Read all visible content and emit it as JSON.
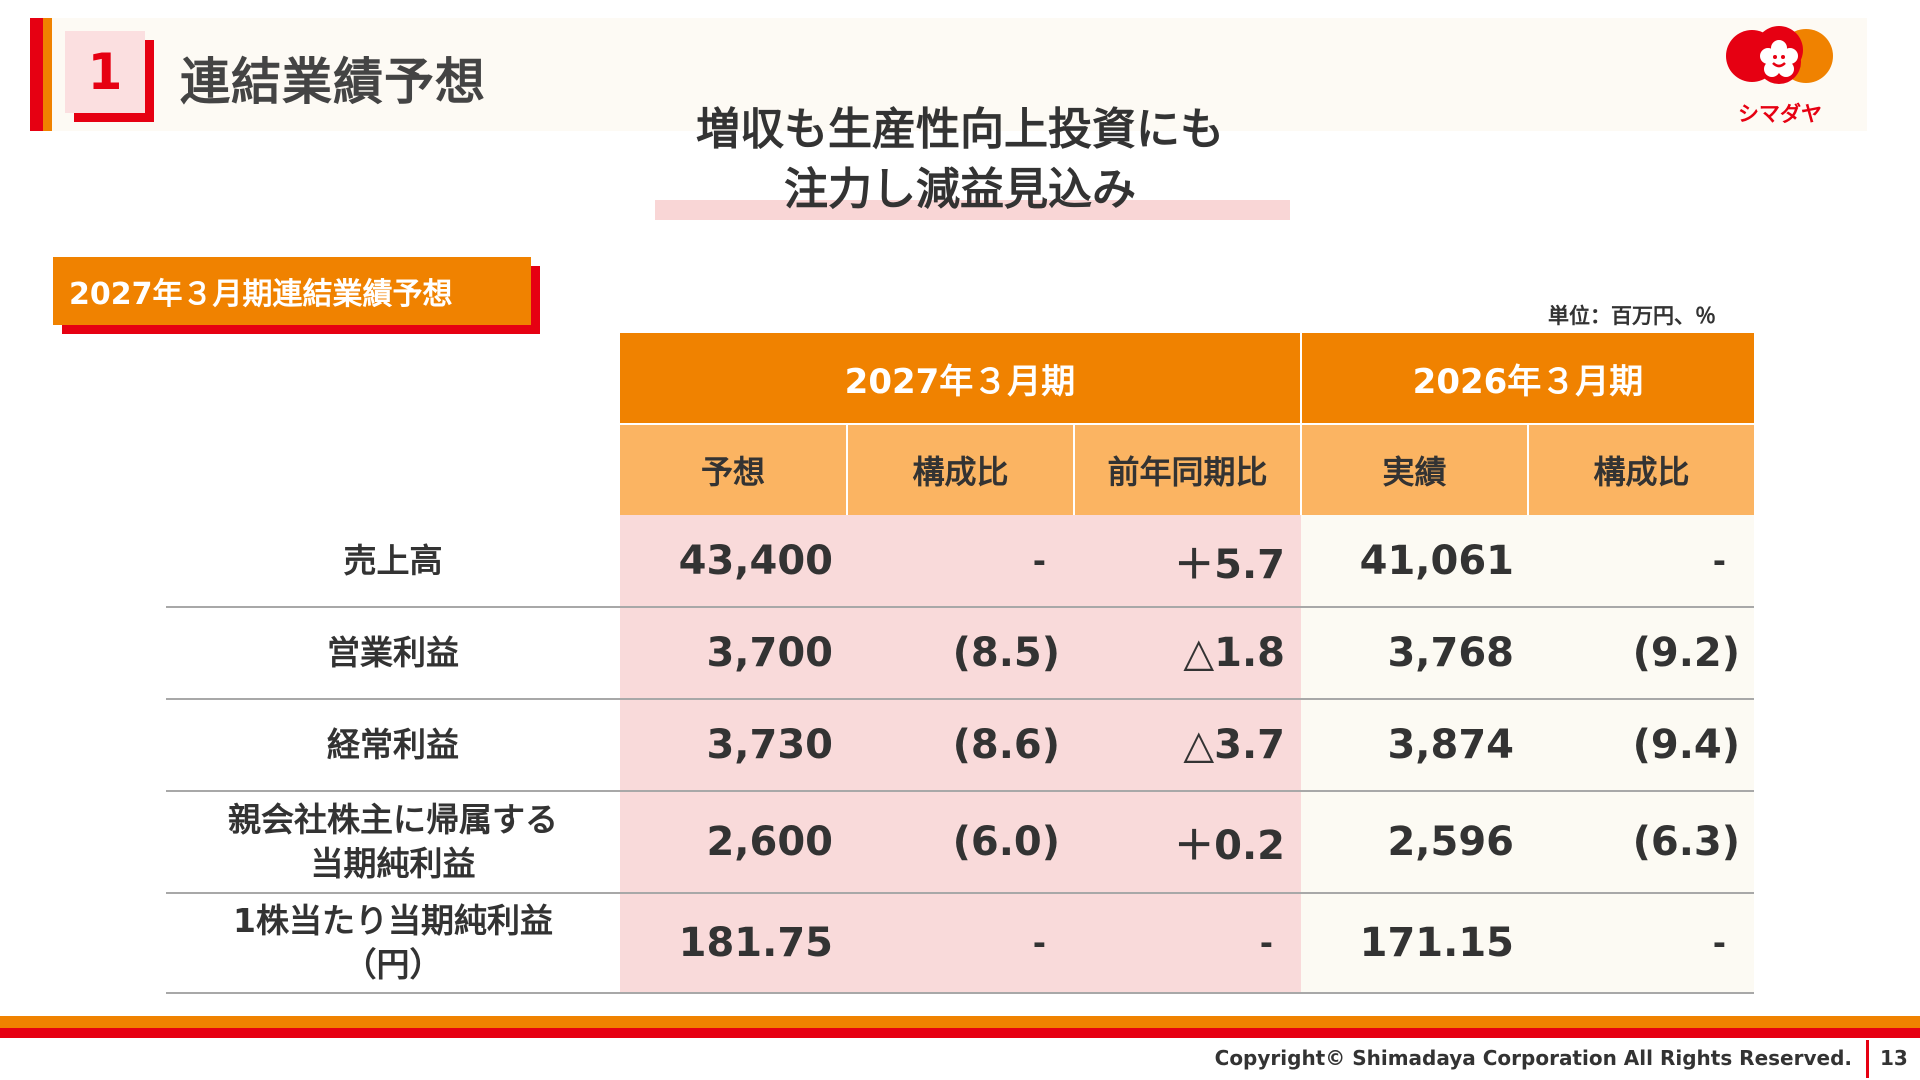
{
  "header": {
    "section_number": "1",
    "section_title": "連結業績予想",
    "logo_text": "シマダヤ"
  },
  "headline": {
    "line1": "増収も生産性向上投資にも",
    "line2": "注力し減益見込み"
  },
  "subtitle": "2027年３月期連結業績予想",
  "unit": "単位：百万円、％",
  "table": {
    "periods": [
      "2027年３月期",
      "2026年３月期"
    ],
    "columns": [
      "予想",
      "構成比",
      "前年同期比",
      "実績",
      "構成比"
    ],
    "rows": [
      {
        "label_lines": [
          "売上高"
        ],
        "values": [
          "43,400",
          "-",
          "＋5.7",
          "41,061",
          "-"
        ]
      },
      {
        "label_lines": [
          "営業利益"
        ],
        "values": [
          "3,700",
          "(8.5)",
          "△1.8",
          "3,768",
          "(9.2)"
        ]
      },
      {
        "label_lines": [
          "経常利益"
        ],
        "values": [
          "3,730",
          "(8.6)",
          "△3.7",
          "3,874",
          "(9.4)"
        ]
      },
      {
        "label_lines": [
          "親会社株主に帰属する",
          "当期純利益"
        ],
        "values": [
          "2,600",
          "(6.0)",
          "＋0.2",
          "2,596",
          "(6.3)"
        ]
      },
      {
        "label_lines": [
          "1株当たり当期純利益",
          "（円）"
        ],
        "values": [
          "181.75",
          "-",
          "-",
          "171.15",
          "-"
        ]
      }
    ]
  },
  "footer": {
    "copyright": "Copyright© Shimadaya Corporation All Rights Reserved.",
    "page_number": "13"
  },
  "colors": {
    "brand_red": "#e60012",
    "brand_orange": "#f08200",
    "header_light_orange": "#fbb462",
    "forecast_pink": "#f9dada",
    "actual_cream": "#fcfaf3"
  }
}
